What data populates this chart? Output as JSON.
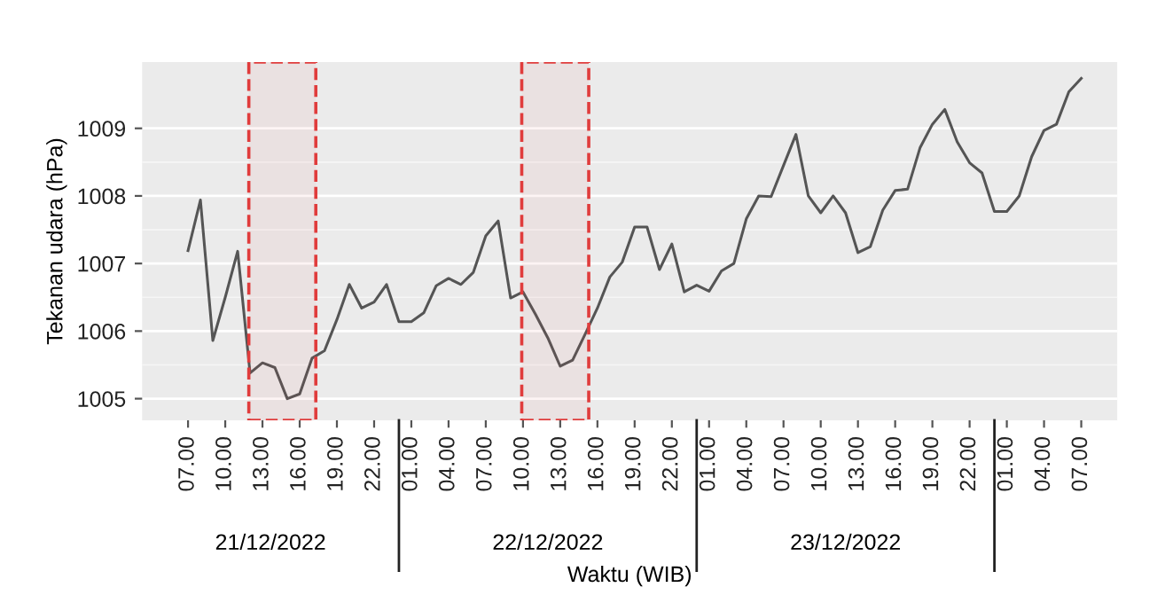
{
  "chart_data": {
    "type": "line",
    "xlabel": "Waktu (WIB)",
    "ylabel": "Tekanan udara (hPa)",
    "x": [
      "2022-12-21T07:00",
      "2022-12-21T08:00",
      "2022-12-21T09:00",
      "2022-12-21T10:00",
      "2022-12-21T11:00",
      "2022-12-21T12:00",
      "2022-12-21T13:00",
      "2022-12-21T14:00",
      "2022-12-21T15:00",
      "2022-12-21T16:00",
      "2022-12-21T17:00",
      "2022-12-21T18:00",
      "2022-12-21T19:00",
      "2022-12-21T20:00",
      "2022-12-21T21:00",
      "2022-12-21T22:00",
      "2022-12-21T23:00",
      "2022-12-22T00:00",
      "2022-12-22T01:00",
      "2022-12-22T02:00",
      "2022-12-22T03:00",
      "2022-12-22T04:00",
      "2022-12-22T05:00",
      "2022-12-22T06:00",
      "2022-12-22T07:00",
      "2022-12-22T08:00",
      "2022-12-22T09:00",
      "2022-12-22T10:00",
      "2022-12-22T11:00",
      "2022-12-22T12:00",
      "2022-12-22T13:00",
      "2022-12-22T14:00",
      "2022-12-22T15:00",
      "2022-12-22T16:00",
      "2022-12-22T17:00",
      "2022-12-22T18:00",
      "2022-12-22T19:00",
      "2022-12-22T20:00",
      "2022-12-22T21:00",
      "2022-12-22T22:00",
      "2022-12-22T23:00",
      "2022-12-23T00:00",
      "2022-12-23T01:00",
      "2022-12-23T02:00",
      "2022-12-23T03:00",
      "2022-12-23T04:00",
      "2022-12-23T05:00",
      "2022-12-23T06:00",
      "2022-12-23T07:00",
      "2022-12-23T08:00",
      "2022-12-23T09:00",
      "2022-12-23T10:00",
      "2022-12-23T11:00",
      "2022-12-23T12:00",
      "2022-12-23T13:00",
      "2022-12-23T14:00",
      "2022-12-23T15:00",
      "2022-12-23T16:00",
      "2022-12-23T17:00",
      "2022-12-23T18:00",
      "2022-12-23T19:00",
      "2022-12-23T20:00",
      "2022-12-23T21:00",
      "2022-12-23T22:00",
      "2022-12-23T23:00",
      "2022-12-24T00:00",
      "2022-12-24T01:00",
      "2022-12-24T02:00",
      "2022-12-24T03:00",
      "2022-12-24T04:00",
      "2022-12-24T05:00",
      "2022-12-24T06:00",
      "2022-12-24T07:00"
    ],
    "series": [
      {
        "color": "#555555",
        "values": [
          1007.19,
          1007.94,
          1005.86,
          1006.5,
          1007.18,
          1005.38,
          1005.53,
          1005.46,
          1005.0,
          1005.07,
          1005.6,
          1005.71,
          1006.17,
          1006.69,
          1006.34,
          1006.43,
          1006.69,
          1006.14,
          1006.14,
          1006.27,
          1006.67,
          1006.78,
          1006.69,
          1006.87,
          1007.41,
          1007.63,
          1006.49,
          1006.58,
          1006.25,
          1005.9,
          1005.48,
          1005.57,
          1005.95,
          1006.34,
          1006.8,
          1007.02,
          1007.54,
          1007.54,
          1006.91,
          1007.29,
          1006.58,
          1006.68,
          1006.59,
          1006.89,
          1007.0,
          1007.66,
          1008.0,
          1007.99,
          1008.45,
          1008.91,
          1008.0,
          1007.75,
          1008.0,
          1007.75,
          1007.16,
          1007.25,
          1007.79,
          1008.08,
          1008.1,
          1008.71,
          1009.06,
          1009.28,
          1008.8,
          1008.49,
          1008.34,
          1007.77,
          1007.77,
          1008.0,
          1008.58,
          1008.97,
          1009.06,
          1009.54,
          1009.74
        ]
      }
    ],
    "xlim": [
      "2022-12-21T03:18",
      "2022-12-24T09:54"
    ],
    "xticks": [
      {
        "value": "2022-12-21T07:00",
        "label": "07.00"
      },
      {
        "value": "2022-12-21T10:00",
        "label": "10.00"
      },
      {
        "value": "2022-12-21T13:00",
        "label": "13.00"
      },
      {
        "value": "2022-12-21T16:00",
        "label": "16.00"
      },
      {
        "value": "2022-12-21T19:00",
        "label": "19.00"
      },
      {
        "value": "2022-12-21T22:00",
        "label": "22.00"
      },
      {
        "value": "2022-12-22T01:00",
        "label": "01.00"
      },
      {
        "value": "2022-12-22T04:00",
        "label": "04.00"
      },
      {
        "value": "2022-12-22T07:00",
        "label": "07.00"
      },
      {
        "value": "2022-12-22T10:00",
        "label": "10.00"
      },
      {
        "value": "2022-12-22T13:00",
        "label": "13.00"
      },
      {
        "value": "2022-12-22T16:00",
        "label": "16.00"
      },
      {
        "value": "2022-12-22T19:00",
        "label": "19.00"
      },
      {
        "value": "2022-12-22T22:00",
        "label": "22.00"
      },
      {
        "value": "2022-12-23T01:00",
        "label": "01.00"
      },
      {
        "value": "2022-12-23T04:00",
        "label": "04.00"
      },
      {
        "value": "2022-12-23T07:00",
        "label": "07.00"
      },
      {
        "value": "2022-12-23T10:00",
        "label": "10.00"
      },
      {
        "value": "2022-12-23T13:00",
        "label": "13.00"
      },
      {
        "value": "2022-12-23T16:00",
        "label": "16.00"
      },
      {
        "value": "2022-12-23T19:00",
        "label": "19.00"
      },
      {
        "value": "2022-12-23T22:00",
        "label": "22.00"
      },
      {
        "value": "2022-12-24T01:00",
        "label": "01.00"
      },
      {
        "value": "2022-12-24T04:00",
        "label": "04.00"
      },
      {
        "value": "2022-12-24T07:00",
        "label": "07.00"
      }
    ],
    "ylim": [
      1004.68,
      1009.98
    ],
    "yticks": [
      1005,
      1006,
      1007,
      1008,
      1009
    ],
    "grid": "y",
    "marker": "none",
    "line_style": "solid",
    "bands": [
      {
        "axis": "x",
        "from": "2022-12-21T11:54",
        "to": "2022-12-21T17:18",
        "color": "#e03c3c"
      },
      {
        "axis": "x",
        "from": "2022-12-22T09:54",
        "to": "2022-12-22T15:18",
        "color": "#e03c3c"
      }
    ],
    "annotations": [
      "21/12/2022",
      "22/12/2022",
      "23/12/2022"
    ]
  }
}
